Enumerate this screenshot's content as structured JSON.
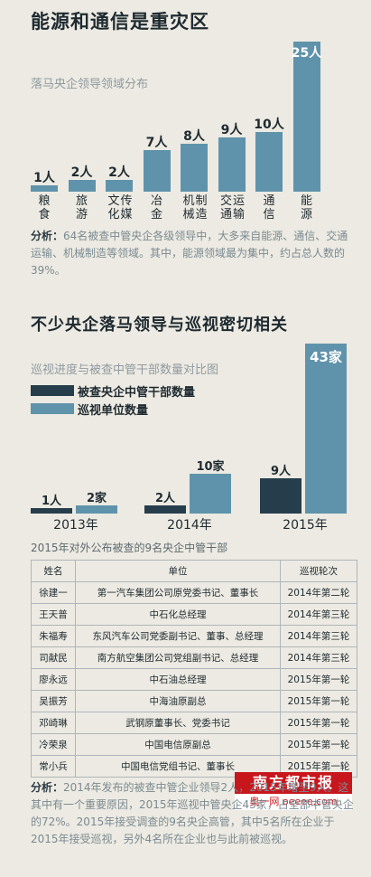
{
  "section1": {
    "title": "能源和通信是重灾区",
    "subtitle": "落马央企领导领域分布",
    "analysis_label": "分析：",
    "analysis_text": "64名被查中管央企各级领导中，大多来自能源、通信、交通运输、机械制造等领域。其中，能源领域最为集中，约占总人数的39%。"
  },
  "section2": {
    "title": "不少央企落马领导与巡视密切相关",
    "subtitle": "巡视进度与被查中管干部数量对比图",
    "legend": [
      {
        "name": "被查央企中管干部数量",
        "color": "#263d4c"
      },
      {
        "name": "巡视单位数量",
        "color": "#5f93ab"
      }
    ]
  },
  "chart_data": [
    {
      "type": "bar",
      "title": "落马央企领导领域分布",
      "categories": [
        "粮食",
        "旅游",
        "文传化媒",
        "冶金",
        "机制械造",
        "交运通输",
        "通信",
        "能源"
      ],
      "values": [
        1,
        2,
        2,
        7,
        8,
        9,
        10,
        25
      ],
      "value_labels": [
        "1人",
        "2人",
        "2人",
        "7人",
        "8人",
        "9人",
        "10人",
        "25人"
      ],
      "ylim": [
        0,
        25
      ]
    },
    {
      "type": "bar",
      "title": "巡视进度与被查中管干部数量对比图",
      "categories": [
        "2013年",
        "2014年",
        "2015年"
      ],
      "series": [
        {
          "name": "被查央企中管干部数量",
          "values": [
            1,
            2,
            9
          ],
          "labels": [
            "1人",
            "2人",
            "9人"
          ]
        },
        {
          "name": "巡视单位数量",
          "values": [
            2,
            10,
            43
          ],
          "labels": [
            "2家",
            "10家",
            "43家"
          ]
        }
      ],
      "ylim": [
        0,
        43
      ]
    }
  ],
  "table": {
    "caption": "2015年对外公布被查的9名央企中管干部",
    "headers": [
      "姓名",
      "单位",
      "巡视轮次"
    ],
    "rows": [
      [
        "徐建一",
        "第一汽车集团公司原党委书记、董事长",
        "2014年第二轮"
      ],
      [
        "王天普",
        "中石化总经理",
        "2014年第三轮"
      ],
      [
        "朱福寿",
        "东风汽车公司党委副书记、董事、总经理",
        "2014年第三轮"
      ],
      [
        "司献民",
        "南方航空集团公司党组副书记、总经理",
        "2014年第三轮"
      ],
      [
        "廖永远",
        "中石油总经理",
        "2015年第一轮"
      ],
      [
        "吴振芳",
        "中海油原副总",
        "2015年第一轮"
      ],
      [
        "邓崎琳",
        "武钢原董事长、党委书记",
        "2015年第一轮"
      ],
      [
        "冷荣泉",
        "中国电信原副总",
        "2015年第一轮"
      ],
      [
        "常小兵",
        "中国电信党组书记、董事长",
        "2015年第一轮"
      ]
    ]
  },
  "analysis2": {
    "label": "分析：",
    "text": "2014年发布的被查中管企业领导2人，2015年增至9人。这其中有一个重要原因，2015年巡视中管央企43家，占全部中管央企的72%。2015年接受调查的9名央企高管，其中5名所在企业于2015年接受巡视，另外4名所在企业也与此前被巡视。"
  },
  "logo": {
    "name": "南方都市报",
    "site": "奥一网 oeeee.com"
  }
}
